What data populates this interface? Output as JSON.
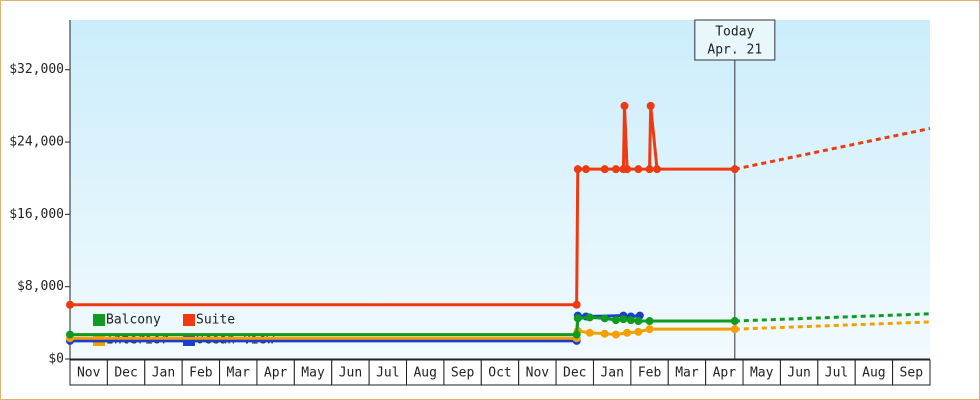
{
  "chart_data": {
    "type": "line",
    "step_style": "price-history",
    "categories": [
      "Nov",
      "Dec",
      "Jan",
      "Feb",
      "Mar",
      "Apr",
      "May",
      "Jun",
      "Jul",
      "Aug",
      "Sep",
      "Oct",
      "Nov",
      "Dec",
      "Jan",
      "Feb",
      "Mar",
      "Apr",
      "May",
      "Jun",
      "Jul",
      "Aug",
      "Sep"
    ],
    "xlim": [
      0,
      23
    ],
    "ylim": [
      0,
      37500
    ],
    "yticks": [
      {
        "value": 0,
        "label": "$0"
      },
      {
        "value": 8000,
        "label": "$8,000"
      },
      {
        "value": 16000,
        "label": "$16,000"
      },
      {
        "value": 24000,
        "label": "$24,000"
      },
      {
        "value": 32000,
        "label": "$32,000"
      }
    ],
    "today": {
      "x": 17.78,
      "label": "Today",
      "date": "Apr. 21"
    },
    "series": [
      {
        "name": "Balcony",
        "color": "#109a20",
        "x": [
          0,
          13.55,
          13.58,
          13.9,
          14.3,
          14.6,
          14.8,
          15.0,
          15.2,
          15.5,
          17.78
        ],
        "values": [
          2700,
          2700,
          4500,
          4600,
          4500,
          4300,
          4400,
          4300,
          4200,
          4200,
          4200
        ],
        "forecast": {
          "x": [
            17.78,
            23
          ],
          "values": [
            4200,
            5000
          ]
        }
      },
      {
        "name": "Suite",
        "color": "#ee3a10",
        "x": [
          0,
          13.55,
          13.58,
          13.8,
          14.3,
          14.6,
          14.8,
          14.83,
          14.9,
          15.2,
          15.5,
          15.53,
          15.7,
          17.78
        ],
        "values": [
          6000,
          6000,
          21000,
          21000,
          21000,
          21000,
          21000,
          28000,
          21000,
          21000,
          21000,
          28000,
          21000,
          21000
        ],
        "forecast": {
          "x": [
            17.78,
            23
          ],
          "values": [
            21000,
            25500
          ]
        }
      },
      {
        "name": "Interior",
        "color": "#f5a000",
        "x": [
          0,
          13.55,
          13.58,
          13.9,
          14.3,
          14.6,
          14.9,
          15.2,
          15.5,
          17.78
        ],
        "values": [
          2300,
          2300,
          3100,
          2900,
          2800,
          2700,
          2900,
          3000,
          3300,
          3300
        ],
        "forecast": {
          "x": [
            17.78,
            23
          ],
          "values": [
            3300,
            4100
          ]
        }
      },
      {
        "name": "Ocean View",
        "color": "#1a3fcc",
        "x": [
          0,
          13.55,
          13.58,
          13.8,
          14.8,
          15.0,
          15.24
        ],
        "values": [
          2000,
          2000,
          4800,
          4700,
          4800,
          4700,
          4800
        ]
      }
    ]
  }
}
